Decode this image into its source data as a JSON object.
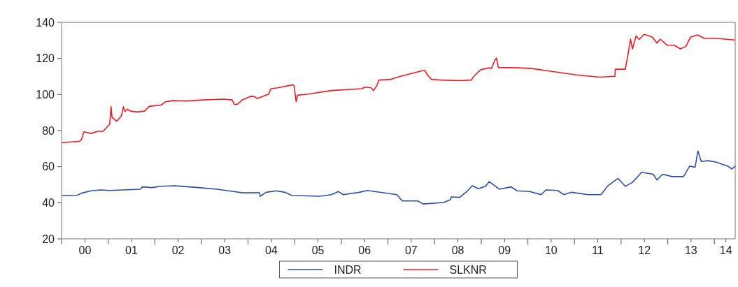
{
  "chart_data": {
    "type": "line",
    "xlim": [
      "2000-01-01",
      "2014-06-13"
    ],
    "ylim": [
      20,
      140
    ],
    "yticks": [
      20,
      40,
      60,
      80,
      100,
      120,
      140
    ],
    "xticks": [
      {
        "value": "2000",
        "label": null
      },
      {
        "value": "2000-07-02",
        "label": "00"
      },
      {
        "value": "2001",
        "label": null
      },
      {
        "value": "2001-07-02",
        "label": "01"
      },
      {
        "value": "2002",
        "label": null
      },
      {
        "value": "2002-07-02",
        "label": "02"
      },
      {
        "value": "2003",
        "label": null
      },
      {
        "value": "2003-07-02",
        "label": "03"
      },
      {
        "value": "2004",
        "label": null
      },
      {
        "value": "2004-07-02",
        "label": "04"
      },
      {
        "value": "2005",
        "label": null
      },
      {
        "value": "2005-07-02",
        "label": "05"
      },
      {
        "value": "2006",
        "label": null
      },
      {
        "value": "2006-07-02",
        "label": "06"
      },
      {
        "value": "2007",
        "label": null
      },
      {
        "value": "2007-07-02",
        "label": "07"
      },
      {
        "value": "2008",
        "label": null
      },
      {
        "value": "2008-07-02",
        "label": "08"
      },
      {
        "value": "2009",
        "label": null
      },
      {
        "value": "2009-07-02",
        "label": "09"
      },
      {
        "value": "2010",
        "label": null
      },
      {
        "value": "2010-07-02",
        "label": "10"
      },
      {
        "value": "2011",
        "label": null
      },
      {
        "value": "2011-07-02",
        "label": "11"
      },
      {
        "value": "2012",
        "label": null
      },
      {
        "value": "2012-07-02",
        "label": "12"
      },
      {
        "value": "2013",
        "label": null
      },
      {
        "value": "2013-07-02",
        "label": "13"
      },
      {
        "value": "2014",
        "label": null
      },
      {
        "value": "2014-04-01",
        "label": "14"
      }
    ],
    "legend": "bottom",
    "series": [
      {
        "name": "INDR",
        "color": "#2b4ea2",
        "x": [
          "2000-01-01",
          "2000-05-04",
          "2000-06-06",
          "2000-08-18",
          "2000-11-03",
          "2001-01-12",
          "2001-09-09",
          "2001-09-27",
          "2001-12-09",
          "2002-02-17",
          "2002-06-06",
          "2002-12-09",
          "2003-05-04",
          "2003-09-09",
          "2003-11-21",
          "2004-02-03",
          "2004-03-30",
          "2004-04-05",
          "2004-05-22",
          "2004-08-11",
          "2004-10-15",
          "2004-12-09",
          "2005-07-16",
          "2005-10-15",
          "2005-12-09",
          "2006-01-16",
          "2006-05-22",
          "2006-07-23",
          "2007-03-11",
          "2007-04-23",
          "2007-08-22",
          "2007-10-04",
          "2008-03-11",
          "2008-05-04",
          "2008-05-11",
          "2008-07-16",
          "2008-09-09",
          "2008-10-23",
          "2008-12-09",
          "2009-02-03",
          "2009-03-04",
          "2009-05-22",
          "2009-08-22",
          "2009-10-08",
          "2010-01-16",
          "2010-04-16",
          "2010-05-22",
          "2010-08-22",
          "2010-10-08",
          "2010-12-09",
          "2011-04-16",
          "2011-07-27",
          "2011-09-20",
          "2011-12-09",
          "2012-02-03",
          "2012-03-30",
          "2012-06-10",
          "2012-09-09",
          "2012-10-08",
          "2012-11-21",
          "2013-02-03",
          "2013-05-04",
          "2013-06-21",
          "2013-08-03",
          "2013-08-25",
          "2013-09-20",
          "2013-11-14",
          "2014-01-16",
          "2014-04-16",
          "2014-05-19",
          "2014-06-13"
        ],
        "values": [
          43.9,
          44.2,
          45.3,
          46.6,
          47.1,
          46.8,
          47.5,
          48.8,
          48.4,
          49.1,
          49.4,
          48.4,
          47.5,
          46.2,
          45.5,
          45.5,
          45.5,
          43.6,
          45.8,
          46.6,
          45.8,
          44,
          43.6,
          44.5,
          46.2,
          44.5,
          45.8,
          46.8,
          44.5,
          41,
          41,
          39.3,
          40.1,
          41.7,
          43.2,
          43,
          46.2,
          49.4,
          47.8,
          49.1,
          51.7,
          47.5,
          48.8,
          46.6,
          46.2,
          44.5,
          47.1,
          46.8,
          44.5,
          45.8,
          44.5,
          44.5,
          49.4,
          53.5,
          49.1,
          51.3,
          56.9,
          55.8,
          52.6,
          55.8,
          54.5,
          54.5,
          60.3,
          59.7,
          68.7,
          62.9,
          63.3,
          62.5,
          60.3,
          58.7,
          60.3
        ]
      },
      {
        "name": "SLKNR",
        "color": "#ed1c24",
        "x": [
          "2000-01-01",
          "2000-05-22",
          "2000-06-06",
          "2000-06-24",
          "2000-08-18",
          "2000-10-12",
          "2000-11-21",
          "2001-01-12",
          "2001-01-23",
          "2001-01-30",
          "2001-03-08",
          "2001-04-13",
          "2001-04-30",
          "2001-05-11",
          "2001-05-30",
          "2001-06-24",
          "2001-08-18",
          "2001-10-12",
          "2001-11-17",
          "2002-02-17",
          "2002-03-26",
          "2002-05-19",
          "2002-09-05",
          "2003-01-12",
          "2003-06-24",
          "2003-08-29",
          "2003-09-16",
          "2003-10-12",
          "2003-11-17",
          "2004-01-23",
          "2004-02-21",
          "2004-03-11",
          "2004-06-10",
          "2004-06-28",
          "2004-08-22",
          "2004-12-16",
          "2004-12-27",
          "2005-01-05",
          "2005-01-12",
          "2005-01-23",
          "2005-04-16",
          "2005-10-15",
          "2006-06-10",
          "2006-07-05",
          "2006-08-22",
          "2006-09-09",
          "2006-10-04",
          "2006-10-23",
          "2007-01-16",
          "2007-03-30",
          "2007-05-22",
          "2007-08-22",
          "2007-10-15",
          "2007-11-10",
          "2007-12-09",
          "2008-02-21",
          "2008-07-16",
          "2008-10-15",
          "2008-11-03",
          "2008-12-27",
          "2009-02-28",
          "2009-03-22",
          "2009-04-16",
          "2009-04-30",
          "2009-05-15",
          "2009-10-15",
          "2010-02-03",
          "2010-07-16",
          "2011-01-16",
          "2011-07-16",
          "2011-11-14",
          "2011-11-17",
          "2012-02-03",
          "2012-02-21",
          "2012-03-15",
          "2012-03-30",
          "2012-04-27",
          "2012-05-22",
          "2012-06-28",
          "2012-07-16",
          "2012-09-02",
          "2012-10-08",
          "2012-11-03",
          "2012-12-27",
          "2013-02-21",
          "2013-04-09",
          "2013-05-22",
          "2013-06-28",
          "2013-08-22",
          "2013-10-15",
          "2014-01-16",
          "2014-06-13"
        ],
        "values": [
          73.2,
          74.1,
          75.1,
          79.3,
          78.4,
          79.6,
          79.6,
          83.5,
          93.2,
          87.4,
          85.2,
          88,
          93.2,
          90.6,
          91.9,
          90.8,
          90.3,
          90.8,
          93.4,
          94.1,
          96,
          96.6,
          96.4,
          97,
          97.4,
          97,
          94.4,
          94.7,
          97,
          99,
          98.9,
          97.7,
          100.2,
          103.2,
          103.7,
          105.4,
          104.7,
          99.6,
          96,
          99.6,
          100.2,
          102.2,
          103.2,
          104.1,
          103.7,
          102.2,
          104.7,
          108,
          108.3,
          109.9,
          110.9,
          112.5,
          113.5,
          110.5,
          108.3,
          108,
          107.7,
          108,
          110.1,
          113.7,
          114.8,
          114.4,
          118.9,
          120.2,
          115,
          114.8,
          114.4,
          112.7,
          110.9,
          109.6,
          110.1,
          114,
          114,
          120.8,
          130.7,
          125.3,
          132.4,
          130.5,
          133.3,
          133,
          131.8,
          128.5,
          130.7,
          127.3,
          127.3,
          125.3,
          126.6,
          131.8,
          133,
          131.1,
          131.1,
          130.2
        ]
      }
    ]
  }
}
